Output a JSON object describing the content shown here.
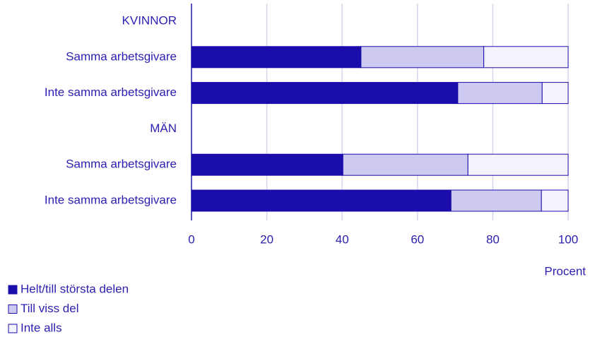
{
  "chart_data": {
    "type": "stacked_barh",
    "categories": [
      "KVINNOR",
      "Samma arbetsgivare",
      "Inte samma arbetsgivare",
      "MÄN",
      "Samma arbetsgivare",
      "Inte samma arbetsgivare"
    ],
    "series": [
      {
        "name": "Helt/till största delen",
        "color": "#1a0dab",
        "values": [
          null,
          45.0,
          70.7,
          null,
          40.2,
          68.9
        ]
      },
      {
        "name": "Till viss del",
        "color": "#cdc9f0",
        "values": [
          null,
          32.6,
          22.4,
          null,
          33.2,
          24.0
        ]
      },
      {
        "name": "Inte alls",
        "color": "#f3f2fd",
        "values": [
          null,
          22.4,
          6.9,
          null,
          26.6,
          7.1
        ]
      }
    ],
    "xlabel": "Procent",
    "xlim": [
      0,
      100
    ],
    "xticks": [
      0,
      20,
      40,
      60,
      80,
      100
    ],
    "grid": true,
    "legend": "bottom-left"
  }
}
